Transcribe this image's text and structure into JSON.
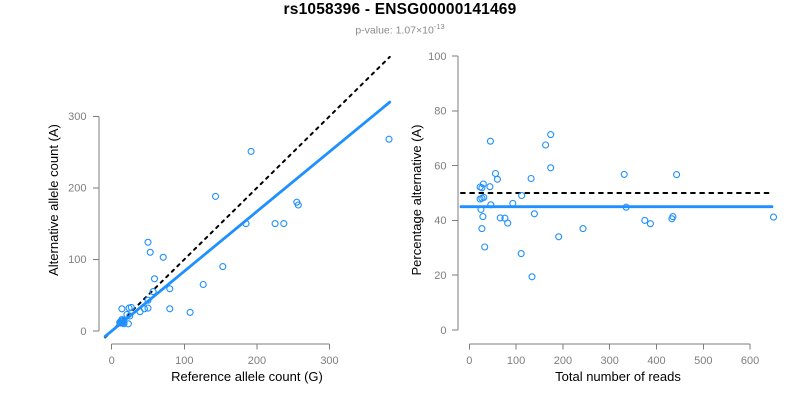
{
  "title": "rs1058396 - ENSG00000141469",
  "subtitle": {
    "text": "p-value: 1.07",
    "times": "×10",
    "exponent": "-13"
  },
  "colors": {
    "point_blue": "#1E90FF",
    "line_blue": "#1E90FF",
    "dotted_black": "#000000",
    "axis_gray": "#7e7e7e",
    "tick_label_gray": "#7e7e7e",
    "subtitle_gray": "#8b8b8b",
    "title_black": "#000000"
  },
  "chart_data": [
    {
      "type": "scatter",
      "panel": "left",
      "xlabel": "Reference allele count (G)",
      "ylabel": "Alternative allele count (A)",
      "xticks": [
        0,
        100,
        200,
        300
      ],
      "yticks": [
        0,
        100,
        200,
        300
      ],
      "xlim": [
        0,
        385
      ],
      "ylim": [
        0,
        390
      ],
      "grid": false,
      "points": [
        [
          11,
          12
        ],
        [
          14,
          16
        ],
        [
          13,
          14
        ],
        [
          21,
          23
        ],
        [
          14,
          13
        ],
        [
          16,
          15
        ],
        [
          12,
          11
        ],
        [
          25,
          21
        ],
        [
          14,
          11
        ],
        [
          17,
          12
        ],
        [
          17,
          10
        ],
        [
          23,
          10
        ],
        [
          14,
          31
        ],
        [
          24,
          32
        ],
        [
          27,
          33
        ],
        [
          39,
          27
        ],
        [
          45,
          31
        ],
        [
          50,
          32
        ],
        [
          50,
          43
        ],
        [
          57,
          55
        ],
        [
          59,
          73
        ],
        [
          80,
          31
        ],
        [
          80,
          59
        ],
        [
          108,
          26
        ],
        [
          50,
          124
        ],
        [
          53,
          110
        ],
        [
          71,
          103
        ],
        [
          126,
          65
        ],
        [
          153,
          90
        ],
        [
          143,
          188
        ],
        [
          185,
          150
        ],
        [
          225,
          150
        ],
        [
          237,
          150
        ],
        [
          255,
          180
        ],
        [
          257,
          176
        ],
        [
          192,
          251
        ],
        [
          382,
          268
        ]
      ],
      "lines": [
        {
          "name": "identity-line",
          "type": "abline",
          "slope": 1,
          "intercept": 0,
          "style": "dotted",
          "color": "#000000"
        },
        {
          "name": "fitted-ratio-line",
          "type": "abline",
          "slope": 0.835,
          "intercept": 0,
          "style": "solid",
          "color": "#1E90FF"
        }
      ]
    },
    {
      "type": "scatter",
      "panel": "right",
      "xlabel": "Total number of reads",
      "ylabel": "Percentage alternative (A)",
      "xticks": [
        0,
        100,
        200,
        300,
        400,
        500,
        600
      ],
      "yticks": [
        0,
        20,
        40,
        60,
        80,
        100
      ],
      "xlim": [
        0,
        650
      ],
      "ylim": [
        0,
        100
      ],
      "grid": false,
      "points": [
        [
          23,
          52.2
        ],
        [
          30,
          53.3
        ],
        [
          27,
          51.9
        ],
        [
          44,
          52.3
        ],
        [
          27,
          48.1
        ],
        [
          31,
          48.4
        ],
        [
          23,
          47.8
        ],
        [
          46,
          45.7
        ],
        [
          25,
          44
        ],
        [
          29,
          41.4
        ],
        [
          27,
          37
        ],
        [
          33,
          30.3
        ],
        [
          45,
          68.9
        ],
        [
          56,
          57.1
        ],
        [
          60,
          55
        ],
        [
          66,
          40.9
        ],
        [
          76,
          40.8
        ],
        [
          82,
          39
        ],
        [
          93,
          46.2
        ],
        [
          112,
          49.1
        ],
        [
          132,
          55.3
        ],
        [
          111,
          27.9
        ],
        [
          139,
          42.4
        ],
        [
          134,
          19.4
        ],
        [
          174,
          71.3
        ],
        [
          163,
          67.5
        ],
        [
          174,
          59.2
        ],
        [
          191,
          34
        ],
        [
          243,
          37
        ],
        [
          331,
          56.8
        ],
        [
          335,
          44.8
        ],
        [
          375,
          40
        ],
        [
          387,
          38.8
        ],
        [
          435,
          41.4
        ],
        [
          433,
          40.6
        ],
        [
          443,
          56.7
        ],
        [
          650,
          41.2
        ]
      ],
      "lines": [
        {
          "name": "expected-50pct-line",
          "type": "hline",
          "y": 50,
          "style": "dotted",
          "color": "#000000"
        },
        {
          "name": "fitted-percentage-line",
          "type": "hline",
          "y": 45,
          "style": "solid",
          "color": "#1E90FF"
        }
      ]
    }
  ]
}
